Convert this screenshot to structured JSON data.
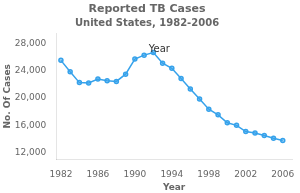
{
  "chart_data": {
    "type": "line",
    "title": "Reported TB Cases",
    "subtitle": "United States, 1982-2006",
    "x_label": "Year",
    "y_label": "No. Of Cases",
    "annotations": [
      {
        "text": "Year",
        "x": 1991.5,
        "y": 26800
      }
    ],
    "x": [
      1982,
      1983,
      1984,
      1985,
      1986,
      1987,
      1988,
      1989,
      1990,
      1991,
      1992,
      1993,
      1994,
      1995,
      1996,
      1997,
      1998,
      1999,
      2000,
      2001,
      2002,
      2003,
      2004,
      2005,
      2006
    ],
    "values": [
      25520,
      23846,
      22255,
      22201,
      22768,
      22517,
      22436,
      23495,
      25701,
      26283,
      26673,
      25103,
      24361,
      22860,
      21337,
      19851,
      18361,
      17531,
      16377,
      15989,
      15075,
      14871,
      14511,
      14097,
      13779
    ],
    "marker": "circle",
    "xlim": [
      1981.5,
      2007
    ],
    "ylim": [
      11000,
      29500
    ],
    "xticks": [
      1982,
      1986,
      1990,
      1994,
      1998,
      2002,
      2006
    ],
    "yticks": [
      {
        "value": 12000,
        "label": "12,000"
      },
      {
        "value": 16000,
        "label": "16,000"
      },
      {
        "value": 20000,
        "label": "20,000"
      },
      {
        "value": 24000,
        "label": "24,000"
      },
      {
        "value": 28000,
        "label": "28,000"
      }
    ],
    "grid": false
  }
}
